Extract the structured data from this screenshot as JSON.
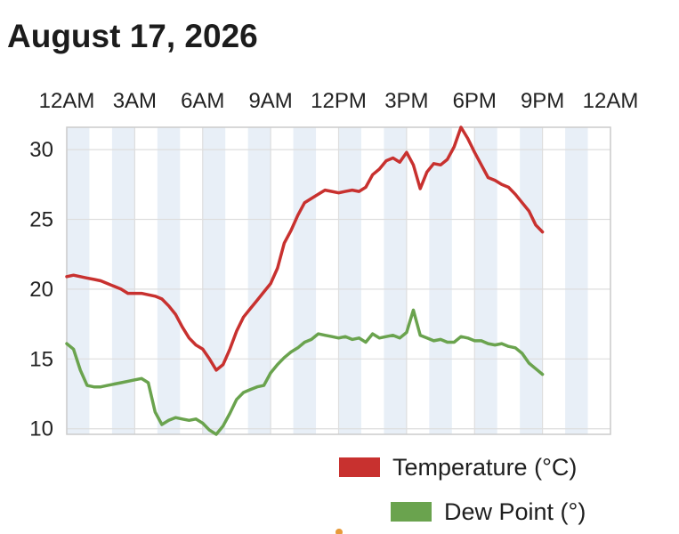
{
  "header": {
    "title": "August 17, 2026"
  },
  "chart_data": {
    "type": "line",
    "title": "August 17, 2026",
    "xlabel": "",
    "ylabel": "",
    "x_axis_position": "top",
    "x_ticks": [
      "12AM",
      "3AM",
      "6AM",
      "9AM",
      "12PM",
      "3PM",
      "6PM",
      "9PM",
      "12AM"
    ],
    "x_range_hours": [
      0,
      24
    ],
    "y_ticks": [
      10,
      15,
      20,
      25,
      30
    ],
    "ylim": [
      9.6,
      31.6
    ],
    "grid": true,
    "background_bands": "alternating light blue hourly bands",
    "legend_placement": "bottom-right",
    "series": [
      {
        "name": "Temperature (°C)",
        "color": "#c8312f",
        "points": [
          [
            0.0,
            20.9
          ],
          [
            0.3,
            21.0
          ],
          [
            0.6,
            20.9
          ],
          [
            0.9,
            20.8
          ],
          [
            1.2,
            20.7
          ],
          [
            1.5,
            20.6
          ],
          [
            1.8,
            20.4
          ],
          [
            2.1,
            20.2
          ],
          [
            2.4,
            20.0
          ],
          [
            2.7,
            19.7
          ],
          [
            3.0,
            19.7
          ],
          [
            3.3,
            19.7
          ],
          [
            3.6,
            19.6
          ],
          [
            3.9,
            19.5
          ],
          [
            4.2,
            19.3
          ],
          [
            4.5,
            18.8
          ],
          [
            4.8,
            18.2
          ],
          [
            5.1,
            17.3
          ],
          [
            5.4,
            16.5
          ],
          [
            5.7,
            16.0
          ],
          [
            6.0,
            15.7
          ],
          [
            6.3,
            15.0
          ],
          [
            6.6,
            14.2
          ],
          [
            6.9,
            14.6
          ],
          [
            7.2,
            15.7
          ],
          [
            7.5,
            17.0
          ],
          [
            7.8,
            18.0
          ],
          [
            8.1,
            18.6
          ],
          [
            8.4,
            19.2
          ],
          [
            8.7,
            19.8
          ],
          [
            9.0,
            20.4
          ],
          [
            9.3,
            21.5
          ],
          [
            9.6,
            23.3
          ],
          [
            9.9,
            24.2
          ],
          [
            10.2,
            25.3
          ],
          [
            10.5,
            26.2
          ],
          [
            10.8,
            26.5
          ],
          [
            11.1,
            26.8
          ],
          [
            11.4,
            27.1
          ],
          [
            11.7,
            27.0
          ],
          [
            12.0,
            26.9
          ],
          [
            12.3,
            27.0
          ],
          [
            12.6,
            27.1
          ],
          [
            12.9,
            27.0
          ],
          [
            13.2,
            27.3
          ],
          [
            13.5,
            28.2
          ],
          [
            13.8,
            28.6
          ],
          [
            14.1,
            29.2
          ],
          [
            14.4,
            29.4
          ],
          [
            14.7,
            29.1
          ],
          [
            15.0,
            29.8
          ],
          [
            15.3,
            28.9
          ],
          [
            15.6,
            27.2
          ],
          [
            15.9,
            28.4
          ],
          [
            16.2,
            29.0
          ],
          [
            16.5,
            28.9
          ],
          [
            16.8,
            29.3
          ],
          [
            17.1,
            30.2
          ],
          [
            17.4,
            31.6
          ],
          [
            17.7,
            30.8
          ],
          [
            18.0,
            29.8
          ],
          [
            18.3,
            28.9
          ],
          [
            18.6,
            28.0
          ],
          [
            18.9,
            27.8
          ],
          [
            19.2,
            27.5
          ],
          [
            19.5,
            27.3
          ],
          [
            19.8,
            26.8
          ],
          [
            20.1,
            26.2
          ],
          [
            20.4,
            25.6
          ],
          [
            20.7,
            24.6
          ],
          [
            21.0,
            24.1
          ]
        ]
      },
      {
        "name": "Dew Point (°)",
        "color": "#6aa34e",
        "points": [
          [
            0.0,
            16.1
          ],
          [
            0.3,
            15.7
          ],
          [
            0.6,
            14.2
          ],
          [
            0.9,
            13.1
          ],
          [
            1.2,
            13.0
          ],
          [
            1.5,
            13.0
          ],
          [
            1.8,
            13.1
          ],
          [
            2.1,
            13.2
          ],
          [
            2.4,
            13.3
          ],
          [
            2.7,
            13.4
          ],
          [
            3.0,
            13.5
          ],
          [
            3.3,
            13.6
          ],
          [
            3.6,
            13.3
          ],
          [
            3.9,
            11.2
          ],
          [
            4.2,
            10.3
          ],
          [
            4.5,
            10.6
          ],
          [
            4.8,
            10.8
          ],
          [
            5.1,
            10.7
          ],
          [
            5.4,
            10.6
          ],
          [
            5.7,
            10.7
          ],
          [
            6.0,
            10.4
          ],
          [
            6.3,
            9.9
          ],
          [
            6.6,
            9.6
          ],
          [
            6.9,
            10.2
          ],
          [
            7.2,
            11.1
          ],
          [
            7.5,
            12.1
          ],
          [
            7.8,
            12.6
          ],
          [
            8.1,
            12.8
          ],
          [
            8.4,
            13.0
          ],
          [
            8.7,
            13.1
          ],
          [
            9.0,
            14.0
          ],
          [
            9.3,
            14.6
          ],
          [
            9.6,
            15.1
          ],
          [
            9.9,
            15.5
          ],
          [
            10.2,
            15.8
          ],
          [
            10.5,
            16.2
          ],
          [
            10.8,
            16.4
          ],
          [
            11.1,
            16.8
          ],
          [
            11.4,
            16.7
          ],
          [
            11.7,
            16.6
          ],
          [
            12.0,
            16.5
          ],
          [
            12.3,
            16.6
          ],
          [
            12.6,
            16.4
          ],
          [
            12.9,
            16.5
          ],
          [
            13.2,
            16.2
          ],
          [
            13.5,
            16.8
          ],
          [
            13.8,
            16.5
          ],
          [
            14.1,
            16.6
          ],
          [
            14.4,
            16.7
          ],
          [
            14.7,
            16.5
          ],
          [
            15.0,
            16.9
          ],
          [
            15.3,
            18.5
          ],
          [
            15.6,
            16.7
          ],
          [
            15.9,
            16.5
          ],
          [
            16.2,
            16.3
          ],
          [
            16.5,
            16.4
          ],
          [
            16.8,
            16.2
          ],
          [
            17.1,
            16.2
          ],
          [
            17.4,
            16.6
          ],
          [
            17.7,
            16.5
          ],
          [
            18.0,
            16.3
          ],
          [
            18.3,
            16.3
          ],
          [
            18.6,
            16.1
          ],
          [
            18.9,
            16.0
          ],
          [
            19.2,
            16.1
          ],
          [
            19.5,
            15.9
          ],
          [
            19.8,
            15.8
          ],
          [
            20.1,
            15.4
          ],
          [
            20.4,
            14.7
          ],
          [
            20.7,
            14.3
          ],
          [
            21.0,
            13.9
          ]
        ]
      }
    ]
  },
  "colors": {
    "band": "#e8eff7",
    "grid": "#dedede",
    "axis": "#cccccc"
  }
}
